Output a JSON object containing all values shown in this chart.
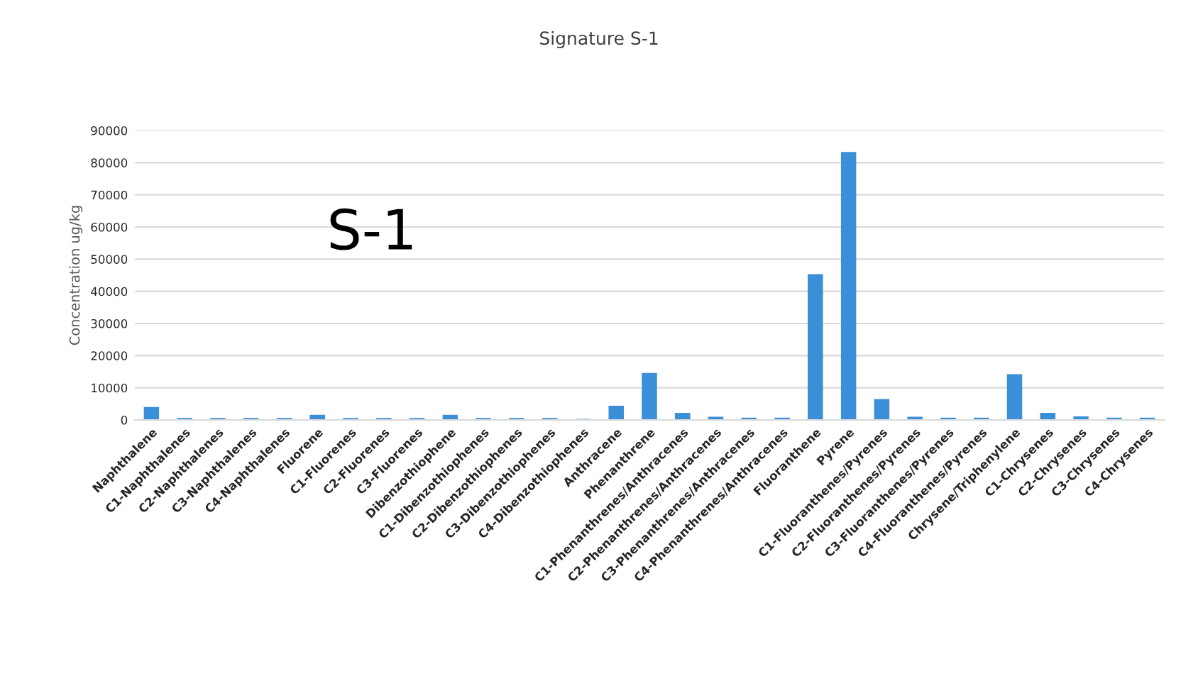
{
  "chart_data": {
    "type": "bar",
    "title": "Signature S-1",
    "ylabel": "Concentration ug/kg",
    "categories": [
      "Naphthalene",
      "C1-Naphthalenes",
      "C2-Naphthalenes",
      "C3-Naphthalenes",
      "C4-Naphthalenes",
      "Fluorene",
      "C1-Fluorenes",
      "C2-Fluorenes",
      "C3-Fluorenes",
      "Dibenzothiophene",
      "C1-Dibenzothiophenes",
      "C2-Dibenzothiophenes",
      "C3-Dibenzothiophenes",
      "C4-Dibenzothiophenes",
      "Anthracene",
      "Phenanthrene",
      "C1-Phenanthrenes/Anthracenes",
      "C2-Phenanthrenes/Anthracenes",
      "C3-Phenanthrenes/Anthracenes",
      "C4-Phenanthrenes/Anthracenes",
      "Fluoranthene",
      "Pyrene",
      "C1-Fluoranthenes/Pyrenes",
      "C2-Fluoranthenes/Pyrenes",
      "C3-Fluoranthenes/Pyrenes",
      "C4-Fluoranthenes/Pyrenes",
      "Chrysene/Triphenylene",
      "C1-Chrysenes",
      "C2-Chrysenes",
      "C3-Chrysenes",
      "C4-Chrysenes"
    ],
    "values": [
      3700,
      300,
      300,
      300,
      300,
      1300,
      300,
      300,
      300,
      1300,
      300,
      300,
      300,
      0,
      4100,
      14300,
      1900,
      700,
      400,
      400,
      45000,
      83000,
      6200,
      700,
      400,
      400,
      13900,
      1900,
      800,
      400,
      400
    ],
    "color": "#3a8fd8",
    "ylim": [
      0,
      90000
    ],
    "yticks": [
      0,
      10000,
      20000,
      30000,
      40000,
      50000,
      60000,
      70000,
      80000,
      90000
    ],
    "grid": "y",
    "legend": false,
    "annotations": [
      "S-1"
    ]
  }
}
